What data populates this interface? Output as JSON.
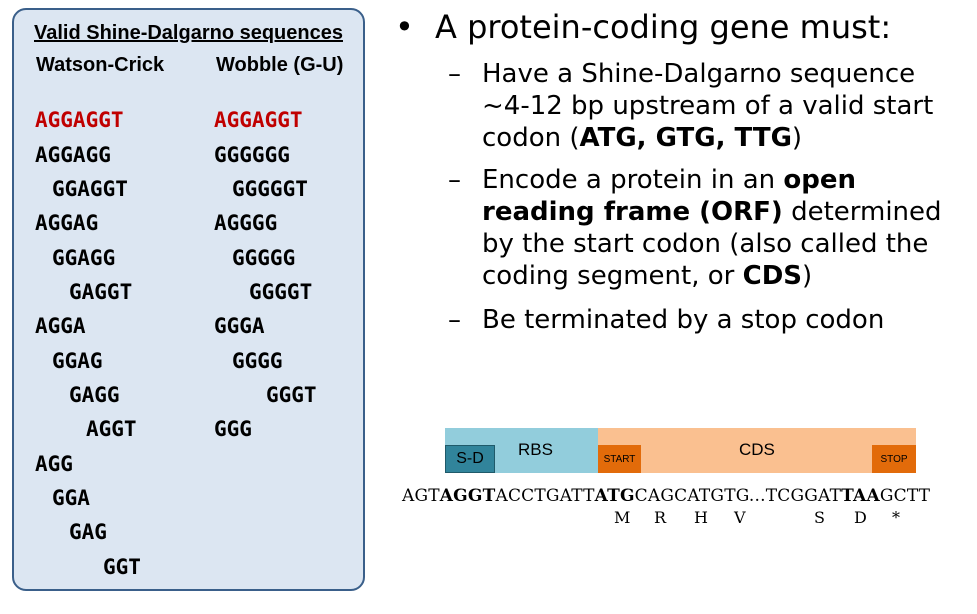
{
  "panel": {
    "title": "Valid Shine-Dalgarno sequences",
    "col1_header": "Watson-Crick",
    "col2_header": "Wobble (G-U)",
    "watson_crick": [
      "AGGAGGT",
      "AGGAGG",
      "GGAGGT",
      "AGGAG",
      "GGAGG",
      "GAGGT",
      "AGGA",
      "GGAG",
      "GAGG",
      "AGGT",
      "AGG",
      "GGA",
      "GAG",
      "GGT"
    ],
    "wobble": [
      "AGGAGGT",
      "GGGGGG",
      "GGGGGT",
      "AGGGG",
      "GGGGG",
      "GGGGT",
      "GGGA",
      "GGGG",
      "GGGT",
      "GGG"
    ],
    "highlight_color": "#c00000"
  },
  "bullet": {
    "main": "A protein-coding gene must:",
    "sub1": {
      "a": "Have a Shine-Dalgarno sequence ~4-12 bp upstream of a valid start codon (",
      "b": "ATG, GTG, TTG",
      "c": ")"
    },
    "sub2": {
      "a": "Encode a protein in an ",
      "b": "open reading frame (ORF)",
      "c": " determined by the start codon (also called the coding segment, or ",
      "d": "CDS",
      "e": ")"
    },
    "sub3": "Be terminated by a stop codon"
  },
  "gene": {
    "sd": "S-D",
    "rbs": "RBS",
    "start": "START",
    "cds": "CDS",
    "stop": "STOP",
    "dna": {
      "p1": "AGT",
      "p2": "AGGT",
      "p3": "ACCTGATT",
      "p4": "ATG",
      "p5": "CAGCATGTG...TCGGAT",
      "p6": "TAA",
      "p7": "GCTT"
    },
    "aa": [
      "M",
      "R",
      "H",
      "V",
      "S",
      "D",
      "*"
    ]
  }
}
